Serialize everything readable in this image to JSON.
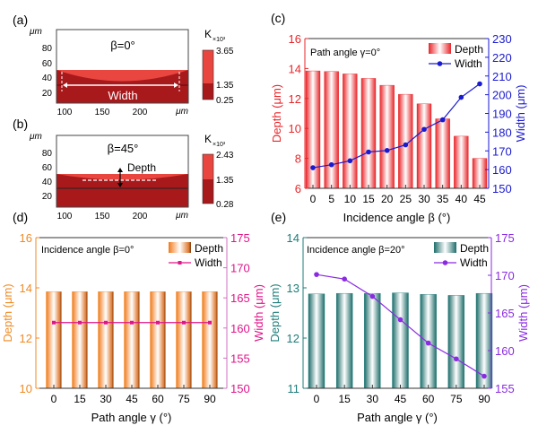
{
  "panels_ab": [
    {
      "label": "(a)",
      "title": "β=0°",
      "y_unit": "μm",
      "x_unit": "μm",
      "y_ticks": [
        "20",
        "40",
        "60",
        "80"
      ],
      "x_ticks": [
        "100",
        "150",
        "200"
      ],
      "annotation": "Width",
      "colorbar": {
        "unit": "K",
        "scale": "×10³",
        "max": "3.65",
        "mid": "1.35",
        "min": "0.25"
      }
    },
    {
      "label": "(b)",
      "title": "β=45°",
      "y_unit": "μm",
      "x_unit": "μm",
      "y_ticks": [
        "20",
        "40",
        "60",
        "80"
      ],
      "x_ticks": [
        "100",
        "150",
        "200"
      ],
      "annotation": "Depth",
      "colorbar": {
        "unit": "K",
        "scale": "×10³",
        "max": "2.43",
        "mid": "1.35",
        "min": "0.28"
      }
    }
  ],
  "colors": {
    "heat_dark": "#a8191c",
    "heat_light": "#e8463f",
    "c_depth": "#e8262a",
    "c_width": "#1a1ad0",
    "d_depth": "#f08a24",
    "d_width": "#e0158a",
    "d_right_axis": "#d070c0",
    "e_depth": "#1d7d7a",
    "e_width": "#8a2be2"
  },
  "chart_data": [
    {
      "label": "(c)",
      "type": "bar+line",
      "annotation": "Path angle γ=0°",
      "xlabel": "Incidence angle β (°)",
      "ylabel": "Depth (μm)",
      "y2label": "Width (μm)",
      "categories": [
        "0",
        "5",
        "10",
        "15",
        "20",
        "25",
        "30",
        "35",
        "40",
        "45"
      ],
      "ylim": [
        6,
        16
      ],
      "yticks": [
        6,
        8,
        10,
        12,
        14,
        16
      ],
      "y2lim": [
        150,
        230
      ],
      "y2ticks": [
        150,
        160,
        170,
        180,
        190,
        200,
        210,
        220,
        230
      ],
      "legend": [
        "Depth",
        "Width"
      ],
      "legend_position": "top-right",
      "series": [
        {
          "name": "Depth",
          "type": "bar",
          "values": [
            13.84,
            13.8,
            13.64,
            13.34,
            12.88,
            12.28,
            11.64,
            10.64,
            9.48,
            8.0
          ]
        },
        {
          "name": "Width",
          "type": "line",
          "axis": "right",
          "values": [
            161.0,
            162.6,
            164.7,
            169.4,
            170.2,
            173.2,
            181.5,
            186.6,
            198.6,
            205.8
          ]
        }
      ]
    },
    {
      "label": "(d)",
      "type": "bar+line",
      "annotation": "Incidence angle β=0°",
      "xlabel": "Path angle γ (°)",
      "ylabel": "Depth (μm)",
      "y2label": "Width (μm)",
      "categories": [
        "0",
        "15",
        "30",
        "45",
        "60",
        "75",
        "90"
      ],
      "ylim": [
        10,
        16
      ],
      "yticks": [
        10,
        12,
        14,
        16
      ],
      "y2lim": [
        150,
        175
      ],
      "y2ticks": [
        150,
        155,
        160,
        165,
        170,
        175
      ],
      "legend": [
        "Depth",
        "Width"
      ],
      "legend_position": "top-right",
      "series": [
        {
          "name": "Depth",
          "type": "bar",
          "values": [
            13.85,
            13.85,
            13.85,
            13.85,
            13.85,
            13.85,
            13.85
          ]
        },
        {
          "name": "Width",
          "type": "line",
          "axis": "right",
          "values": [
            160.9,
            160.9,
            160.9,
            160.9,
            160.9,
            160.9,
            160.9
          ]
        }
      ]
    },
    {
      "label": "(e)",
      "type": "bar+line",
      "annotation": "Incidence angle β=20°",
      "xlabel": "Path angle γ (°)",
      "ylabel": "Depth (μm)",
      "y2label": "Width (μm)",
      "categories": [
        "0",
        "15",
        "30",
        "45",
        "60",
        "75",
        "90"
      ],
      "ylim": [
        11,
        14
      ],
      "yticks": [
        11,
        12,
        13,
        14
      ],
      "y2lim": [
        155,
        175
      ],
      "y2ticks": [
        155,
        160,
        165,
        170,
        175
      ],
      "legend": [
        "Depth",
        "Width"
      ],
      "legend_position": "top-right",
      "series": [
        {
          "name": "Depth",
          "type": "bar",
          "values": [
            12.88,
            12.89,
            12.89,
            12.9,
            12.87,
            12.85,
            12.89
          ]
        },
        {
          "name": "Width",
          "type": "line",
          "axis": "right",
          "values": [
            170.1,
            169.5,
            167.2,
            164.1,
            161.0,
            158.9,
            156.6
          ]
        }
      ]
    }
  ]
}
